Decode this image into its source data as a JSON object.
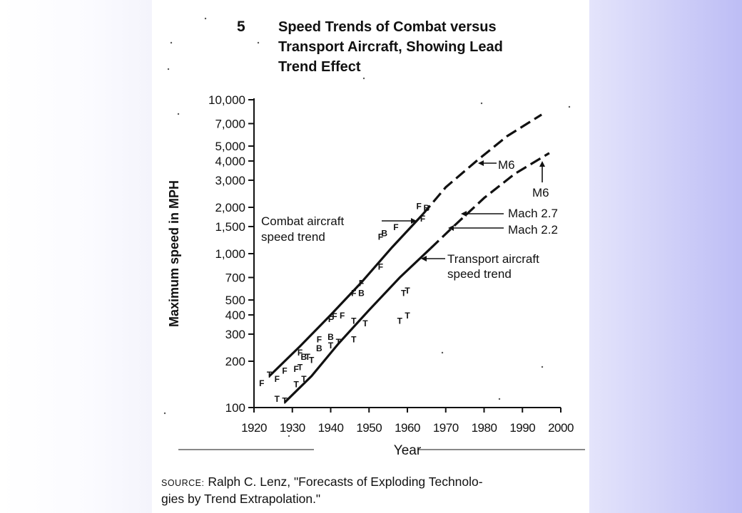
{
  "figure": {
    "number": "5",
    "title_lines": [
      "Speed Trends of Combat versus",
      "Transport Aircraft, Showing Lead",
      "Trend Effect"
    ]
  },
  "source": {
    "label": "SOURCE:",
    "text_line1": "Ralph C. Lenz, \"Forecasts of Exploding Technolo-",
    "text_line2": "gies by Trend Extrapolation.\""
  },
  "colors": {
    "right_panel": "#c8c8f7",
    "ink": "#111111"
  },
  "chart_data": {
    "type": "scatter",
    "title": "Speed Trends of Combat versus Transport Aircraft, Showing Lead Trend Effect",
    "xlabel": "Year",
    "ylabel": "Maximum speed in MPH",
    "y_scale": "log",
    "xlim": [
      1920,
      2000
    ],
    "ylim": [
      100,
      10000
    ],
    "x_ticks": [
      "1920",
      "1930",
      "1940",
      "1950",
      "1960",
      "1970",
      "1980",
      "1990",
      "2000"
    ],
    "y_ticks": [
      {
        "value": 10000,
        "label": "10,000"
      },
      {
        "value": 7000,
        "label": "7,000"
      },
      {
        "value": 5000,
        "label": "5,000"
      },
      {
        "value": 4000,
        "label": "4,000"
      },
      {
        "value": 3000,
        "label": "3,000"
      },
      {
        "value": 2000,
        "label": "2,000"
      },
      {
        "value": 1500,
        "label": "1,500"
      },
      {
        "value": 1000,
        "label": "1,000"
      },
      {
        "value": 700,
        "label": "700"
      },
      {
        "value": 500,
        "label": "500"
      },
      {
        "value": 400,
        "label": "400"
      },
      {
        "value": 300,
        "label": "300"
      },
      {
        "value": 200,
        "label": "200"
      },
      {
        "value": 100,
        "label": "100"
      }
    ],
    "trend_lines": [
      {
        "name": "Combat aircraft speed trend",
        "solid": [
          [
            1924,
            160
          ],
          [
            1932,
            250
          ],
          [
            1940,
            400
          ],
          [
            1948,
            650
          ],
          [
            1956,
            1100
          ],
          [
            1964,
            1800
          ]
        ],
        "dashed": [
          [
            1964,
            1800
          ],
          [
            1970,
            2700
          ],
          [
            1978,
            4000
          ],
          [
            1986,
            5800
          ],
          [
            1995,
            8000
          ]
        ]
      },
      {
        "name": "Transport aircraft speed trend",
        "solid": [
          [
            1928,
            108
          ],
          [
            1935,
            160
          ],
          [
            1942,
            260
          ],
          [
            1950,
            430
          ],
          [
            1958,
            700
          ],
          [
            1966,
            1080
          ]
        ],
        "dashed": [
          [
            1966,
            1080
          ],
          [
            1972,
            1500
          ],
          [
            1980,
            2300
          ],
          [
            1988,
            3300
          ],
          [
            1997,
            4500
          ]
        ]
      }
    ],
    "points": [
      {
        "m": "F",
        "x": 1922,
        "y": 145
      },
      {
        "m": "T",
        "x": 1924,
        "y": 165
      },
      {
        "m": "F",
        "x": 1926,
        "y": 155
      },
      {
        "m": "F",
        "x": 1928,
        "y": 175
      },
      {
        "m": "T",
        "x": 1926,
        "y": 115
      },
      {
        "m": "T",
        "x": 1928,
        "y": 112
      },
      {
        "m": "T",
        "x": 1931,
        "y": 143
      },
      {
        "m": "F",
        "x": 1931,
        "y": 180
      },
      {
        "m": "T",
        "x": 1933,
        "y": 155
      },
      {
        "m": "T",
        "x": 1932,
        "y": 185
      },
      {
        "m": "F",
        "x": 1932,
        "y": 230
      },
      {
        "m": "B",
        "x": 1933,
        "y": 215
      },
      {
        "m": "T",
        "x": 1934,
        "y": 215
      },
      {
        "m": "T",
        "x": 1935,
        "y": 205
      },
      {
        "m": "F",
        "x": 1937,
        "y": 280
      },
      {
        "m": "B",
        "x": 1937,
        "y": 245
      },
      {
        "m": "B",
        "x": 1940,
        "y": 290
      },
      {
        "m": "T",
        "x": 1940,
        "y": 255
      },
      {
        "m": "F",
        "x": 1940,
        "y": 380
      },
      {
        "m": "F",
        "x": 1941,
        "y": 395
      },
      {
        "m": "F",
        "x": 1943,
        "y": 400
      },
      {
        "m": "T",
        "x": 1942,
        "y": 270
      },
      {
        "m": "T",
        "x": 1946,
        "y": 280
      },
      {
        "m": "T",
        "x": 1946,
        "y": 370
      },
      {
        "m": "F",
        "x": 1946,
        "y": 560
      },
      {
        "m": "F",
        "x": 1948,
        "y": 650
      },
      {
        "m": "B",
        "x": 1948,
        "y": 560
      },
      {
        "m": "T",
        "x": 1949,
        "y": 355
      },
      {
        "m": "F",
        "x": 1953,
        "y": 830
      },
      {
        "m": "F",
        "x": 1953,
        "y": 1300
      },
      {
        "m": "B",
        "x": 1954,
        "y": 1370
      },
      {
        "m": "F",
        "x": 1957,
        "y": 1500
      },
      {
        "m": "T",
        "x": 1958,
        "y": 370
      },
      {
        "m": "T",
        "x": 1959,
        "y": 560
      },
      {
        "m": "T",
        "x": 1960,
        "y": 580
      },
      {
        "m": "T",
        "x": 1960,
        "y": 400
      },
      {
        "m": "F",
        "x": 1963,
        "y": 2050
      },
      {
        "m": "B",
        "x": 1965,
        "y": 2000
      },
      {
        "m": "F",
        "x": 1964,
        "y": 1700
      }
    ],
    "annotations": [
      {
        "text": "Combat aircraft",
        "text2": "speed trend"
      },
      {
        "text": "Transport aircraft",
        "text2": "speed trend"
      },
      {
        "text": "M6"
      },
      {
        "text": "M6"
      },
      {
        "text": "Mach 2.7"
      },
      {
        "text": "Mach 2.2"
      }
    ],
    "grid": false,
    "legend": "none"
  }
}
